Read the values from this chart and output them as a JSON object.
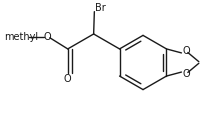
{
  "background": "#ffffff",
  "line_color": "#1a1a1a",
  "line_width": 1.0,
  "text_color": "#1a1a1a",
  "font_size": 7.0,
  "figsize": [
    2.2,
    1.17
  ],
  "dpi": 100,
  "xlim": [
    -2.4,
    2.6
  ],
  "ylim": [
    -1.4,
    1.5
  ]
}
